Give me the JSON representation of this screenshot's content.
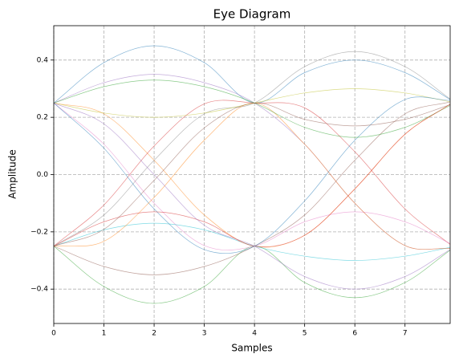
{
  "chart_data": {
    "type": "line",
    "title": "Eye Diagram",
    "x_label": "Samples",
    "y_label": "Amplitude",
    "x": [
      0,
      1,
      2,
      3,
      4,
      5,
      6,
      7,
      7.9
    ],
    "series": [
      {
        "color": "#1f77b4",
        "values": [
          0.25,
          0.391,
          0.45,
          0.391,
          0.25,
          0.356,
          0.4,
          0.356,
          0.262
        ]
      },
      {
        "color": "#ff7f0e",
        "values": [
          0.25,
          0.212,
          0.05,
          -0.141,
          -0.25,
          -0.212,
          -0.05,
          0.141,
          0.246
        ]
      },
      {
        "color": "#2ca02c",
        "values": [
          -0.25,
          -0.391,
          -0.45,
          -0.391,
          -0.25,
          -0.377,
          -0.43,
          -0.377,
          -0.264
        ]
      },
      {
        "color": "#d62728",
        "values": [
          -0.25,
          -0.106,
          0.1,
          0.247,
          0.25,
          0.233,
          0.08,
          -0.12,
          -0.244
        ]
      },
      {
        "color": "#9467bd",
        "values": [
          0.25,
          0.321,
          0.35,
          0.321,
          0.25,
          0.106,
          -0.1,
          -0.248,
          -0.258
        ]
      },
      {
        "color": "#8c564b",
        "values": [
          -0.25,
          -0.321,
          -0.35,
          -0.321,
          -0.25,
          -0.141,
          0.05,
          0.212,
          0.254
        ]
      },
      {
        "color": "#e377c2",
        "values": [
          0.25,
          0.106,
          -0.1,
          -0.248,
          -0.25,
          -0.165,
          -0.13,
          -0.165,
          -0.241
        ]
      },
      {
        "color": "#7f7f7f",
        "values": [
          -0.25,
          -0.141,
          0.05,
          0.212,
          0.25,
          0.377,
          0.43,
          0.377,
          0.264
        ]
      },
      {
        "color": "#bcbd22",
        "values": [
          0.25,
          0.215,
          0.2,
          0.215,
          0.25,
          0.285,
          0.3,
          0.285,
          0.254
        ]
      },
      {
        "color": "#17becf",
        "values": [
          -0.25,
          -0.193,
          -0.17,
          -0.193,
          -0.25,
          -0.285,
          -0.3,
          -0.285,
          -0.254
        ]
      },
      {
        "color": "#1f77b4",
        "values": [
          0.25,
          0.092,
          -0.12,
          -0.262,
          -0.25,
          -0.092,
          0.12,
          0.262,
          0.259
        ]
      },
      {
        "color": "#ff7f0e",
        "values": [
          -0.25,
          -0.233,
          -0.08,
          0.12,
          0.25,
          0.106,
          -0.1,
          -0.248,
          -0.258
        ]
      },
      {
        "color": "#2ca02c",
        "values": [
          0.25,
          0.307,
          0.33,
          0.307,
          0.25,
          0.165,
          0.13,
          0.165,
          0.241
        ]
      },
      {
        "color": "#d62728",
        "values": [
          -0.25,
          -0.165,
          -0.13,
          -0.165,
          -0.25,
          -0.212,
          -0.05,
          0.141,
          0.246
        ]
      },
      {
        "color": "#9467bd",
        "values": [
          0.25,
          0.177,
          0,
          -0.177,
          -0.25,
          -0.356,
          -0.4,
          -0.356,
          -0.262
        ]
      },
      {
        "color": "#8c564b",
        "values": [
          -0.25,
          -0.191,
          -0.02,
          0.163,
          0.25,
          0.193,
          0.17,
          0.193,
          0.244
        ]
      }
    ],
    "xlim": [
      0,
      7.9
    ],
    "xticks": [
      0,
      1,
      2,
      3,
      4,
      5,
      6,
      7
    ],
    "ylim": [
      -0.52,
      0.52
    ],
    "yticks": [
      {
        "value": -0.4,
        "label": "−0.4"
      },
      {
        "value": -0.2,
        "label": "−0.2"
      },
      {
        "value": 0,
        "label": "0.0"
      },
      0.2,
      0.4
    ],
    "grid": true
  }
}
